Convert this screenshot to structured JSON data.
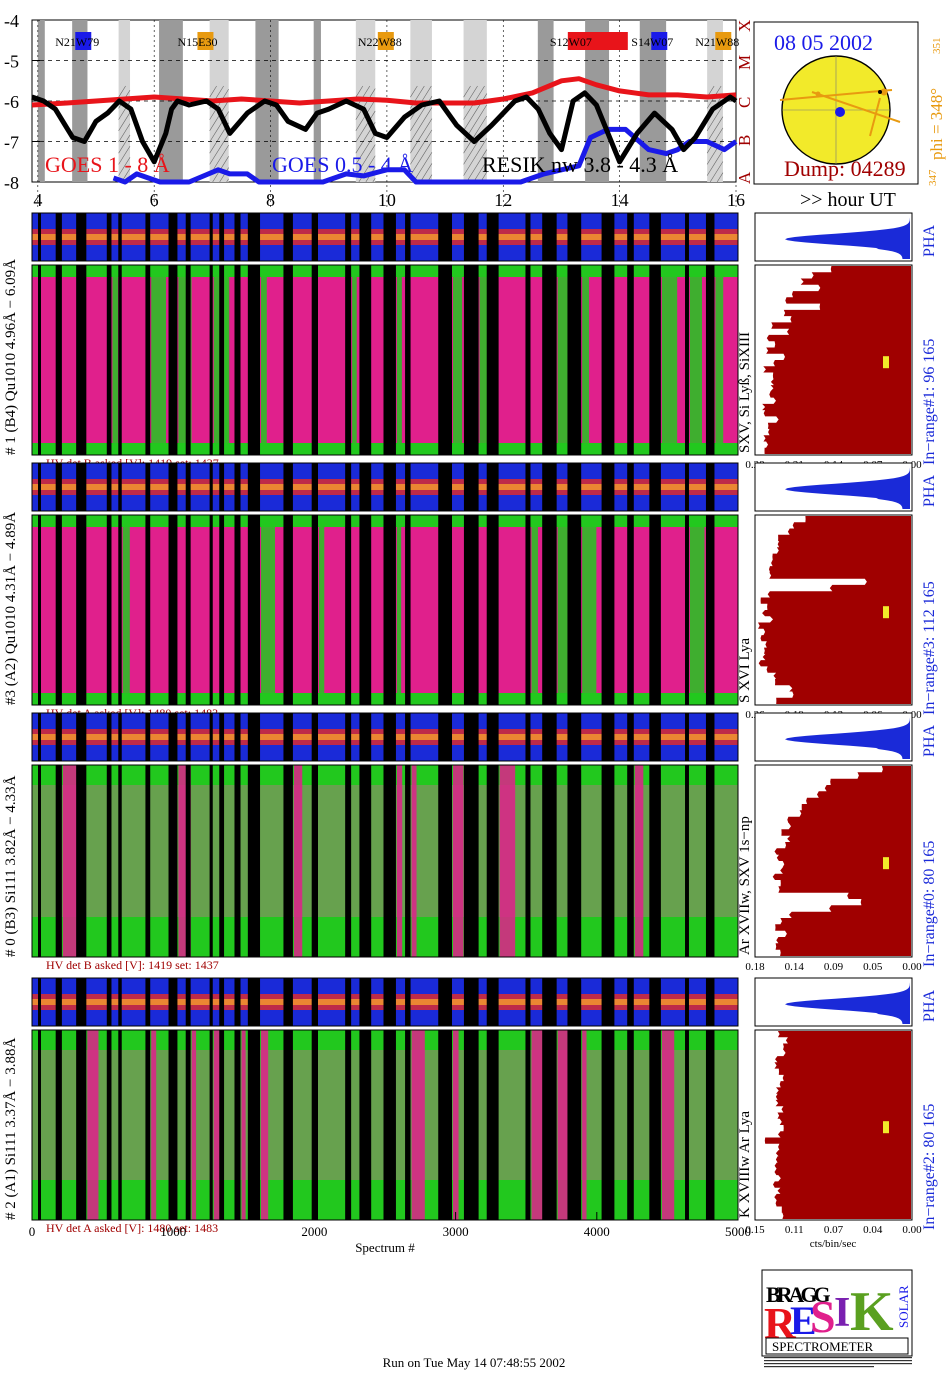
{
  "header": {
    "date": "08 05 2002",
    "dump": "Dump: 04289",
    "phi": "phi = 348°",
    "phi_sub": "351",
    "phi_bottom": "347",
    "hour_label": ">> hour UT",
    "goes_legend_1": "GOES 1 - 8 Å",
    "goes_legend_2": "GOES 0.5 - 4 Å",
    "resik_legend": "RESIK nw 3.8 - 4.3 Å"
  },
  "goes": {
    "ylim": [
      -8,
      -4
    ],
    "yticks": [
      "-4",
      "-5",
      "-6",
      "-7",
      "-8"
    ],
    "classes": [
      "X",
      "M",
      "C",
      "B",
      "A"
    ],
    "xticks": [
      "4",
      "6",
      "8",
      "10",
      "12",
      "14",
      "16"
    ],
    "xrange": [
      3.9,
      16
    ],
    "regions": [
      {
        "label": "N21W79",
        "x": 4.3
      },
      {
        "label": "N15E30",
        "x": 6.4
      },
      {
        "label": "N22W88",
        "x": 9.5
      },
      {
        "label": "S12W07",
        "x": 12.8
      },
      {
        "label": "S14W07",
        "x": 14.2
      },
      {
        "label": "N21W88",
        "x": 15.3
      }
    ],
    "red_curve": {
      "x": [
        3.9,
        4.5,
        5.0,
        5.5,
        6.0,
        6.5,
        7.0,
        7.5,
        8.0,
        8.5,
        9.0,
        9.5,
        10.0,
        10.5,
        11.0,
        11.5,
        12.0,
        12.5,
        13.0,
        13.3,
        13.6,
        14.0,
        14.5,
        15.0,
        15.5,
        16.0
      ],
      "y": [
        -6.1,
        -6.05,
        -6.0,
        -5.95,
        -5.9,
        -5.95,
        -6.0,
        -5.95,
        -6.0,
        -6.05,
        -6.0,
        -5.95,
        -5.98,
        -6.05,
        -6.05,
        -6.05,
        -5.95,
        -5.8,
        -5.5,
        -5.45,
        -5.6,
        -5.75,
        -5.85,
        -5.85,
        -5.9,
        -5.85
      ]
    },
    "blue_curve": {
      "x": [
        5.3,
        5.5,
        5.7,
        5.9,
        6.1,
        6.3,
        6.6,
        7.1,
        7.3,
        7.6,
        7.8,
        8.9,
        9.3,
        9.6,
        10.0,
        10.3,
        10.5,
        11.2,
        11.6,
        12.0,
        12.3,
        12.7,
        13.0,
        13.3,
        13.5,
        13.8,
        14.1,
        14.5,
        14.8,
        15.0,
        15.2,
        15.5,
        15.8,
        16.0
      ],
      "y": [
        -7.9,
        -8.0,
        -7.8,
        -7.9,
        -8.0,
        -8.0,
        -8.0,
        -7.7,
        -7.8,
        -7.8,
        -8.0,
        -8.0,
        -7.8,
        -7.85,
        -7.7,
        -7.7,
        -8.0,
        -8.0,
        -8.0,
        -8.0,
        -8.0,
        -7.8,
        -7.7,
        -7.6,
        -6.9,
        -6.7,
        -6.7,
        -7.2,
        -7.3,
        -7.2,
        -7.0,
        -7.0,
        -7.2,
        -7.0
      ]
    },
    "black_curve": {
      "x": [
        3.9,
        4.1,
        4.3,
        4.6,
        4.8,
        5.0,
        5.2,
        5.4,
        5.6,
        5.8,
        6.0,
        6.2,
        6.3,
        6.4,
        6.6,
        6.9,
        7.1,
        7.3,
        7.6,
        7.9,
        8.1,
        8.3,
        8.6,
        8.8,
        9.0,
        9.3,
        9.6,
        9.8,
        10.0,
        10.3,
        10.6,
        10.9,
        11.2,
        11.5,
        11.8,
        12.0,
        12.2,
        12.4,
        12.6,
        12.8,
        13.0,
        13.2,
        13.4,
        13.6,
        13.8,
        14.0,
        14.3,
        14.6,
        14.9,
        15.1,
        15.3,
        15.6,
        15.9,
        16.0
      ],
      "y": [
        -5.9,
        -6.0,
        -6.2,
        -6.9,
        -7.0,
        -6.5,
        -6.3,
        -6.0,
        -6.2,
        -7.0,
        -7.5,
        -6.8,
        -6.2,
        -6.0,
        -6.1,
        -6.0,
        -6.2,
        -6.8,
        -6.3,
        -6.0,
        -6.1,
        -6.5,
        -6.7,
        -6.3,
        -6.2,
        -6.0,
        -6.2,
        -6.8,
        -6.9,
        -6.4,
        -6.1,
        -6.0,
        -6.6,
        -7.0,
        -6.6,
        -6.3,
        -6.0,
        -5.9,
        -6.2,
        -6.8,
        -7.2,
        -6.0,
        -5.8,
        -6.1,
        -6.8,
        -7.5,
        -6.8,
        -6.3,
        -6.7,
        -7.2,
        -6.9,
        -6.2,
        -5.9,
        -6.0
      ]
    }
  },
  "spectrum_axis": {
    "xlabel": "Spectrum #",
    "ticks": [
      "0",
      "1000",
      "2000",
      "3000",
      "4000",
      "5000"
    ],
    "range": [
      0,
      5000
    ]
  },
  "panels": [
    {
      "detector_label": "# 1 (B4) Qu1010 4.96Å − 6.09Å",
      "lines_label": "SXV, Si Lyß, SiXIII",
      "inrange_label": "In−range#1:   96 165",
      "pha_label": "PHA",
      "hv_label": "HV det B asked [V]:  1419  set:  1437",
      "xticks": [
        "0.28",
        "0.21",
        "0.14",
        "0.07",
        "0.00"
      ],
      "hue": "pink",
      "profile": [
        0.55,
        0.62,
        0.7,
        0.58,
        0.75,
        0.8,
        0.62,
        0.85,
        0.78,
        0.9,
        0.82,
        0.95,
        0.88,
        0.93,
        0.86,
        0.9,
        0.95,
        0.92,
        0.87,
        0.91,
        0.94,
        0.89,
        0.96,
        0.93,
        0.9,
        0.94,
        0.91,
        0.95,
        0.92,
        0.97
      ]
    },
    {
      "detector_label": "#3 (A2) Qu1010  4.31Å − 4.89Å",
      "lines_label": "S XVI Lya",
      "inrange_label": "In−range#3:   112 165",
      "pha_label": "PHA",
      "hv_label": "HV det A asked [V]:  1480  set:  1483",
      "xticks": [
        "0.26",
        "0.19",
        "0.13",
        "0.06",
        "0.00"
      ],
      "hue": "pink",
      "profile": [
        0.72,
        0.75,
        0.8,
        0.84,
        0.86,
        0.9,
        0.88,
        0.92,
        0.94,
        0.95,
        0.3,
        0.5,
        0.92,
        0.96,
        0.94,
        0.97,
        0.95,
        0.98,
        0.96,
        0.97,
        0.95,
        0.97,
        0.96,
        0.98,
        0.94,
        0.9,
        0.86,
        0.82,
        0.78,
        0.9
      ]
    },
    {
      "detector_label": "# 0 (B3) Si111  3.82Å − 4.33Å",
      "lines_label": "Ar XVIIw,  SXV 1s−np",
      "inrange_label": "In−range#0:   80 165",
      "pha_label": "PHA",
      "hv_label": "HV det B asked [V]:  1419  set:  1437",
      "xticks": [
        "0.18",
        "0.14",
        "0.09",
        "0.05",
        "0.00"
      ],
      "hue": "green",
      "profile": [
        0.22,
        0.35,
        0.5,
        0.58,
        0.62,
        0.68,
        0.7,
        0.74,
        0.78,
        0.8,
        0.82,
        0.8,
        0.83,
        0.85,
        0.84,
        0.86,
        0.85,
        0.88,
        0.87,
        0.86,
        0.4,
        0.35,
        0.55,
        0.8,
        0.84,
        0.86,
        0.84,
        0.87,
        0.86,
        0.88
      ]
    },
    {
      "detector_label": "# 2 (A1) Si111  3.37Å − 3.88Å",
      "lines_label": "K XVIIIw  Ar Lya",
      "inrange_label": "In−range#2:   80 165",
      "pha_label": "PHA",
      "hv_label": "HV det A asked [V]:  1480  set:  1483",
      "xticks": [
        "0.15",
        "0.11",
        "0.07",
        "0.04",
        "0.00"
      ],
      "hue": "green",
      "profile": [
        0.9,
        0.82,
        0.84,
        0.86,
        0.85,
        0.87,
        0.86,
        0.84,
        0.85,
        0.86,
        0.88,
        0.86,
        0.85,
        0.9,
        0.87,
        0.86,
        0.85,
        0.96,
        0.84,
        0.86,
        0.85,
        0.86,
        0.87,
        0.85,
        0.86,
        0.84,
        0.88,
        0.86,
        0.85,
        0.87
      ]
    }
  ],
  "profile_axis_label": "cts/bin/sec",
  "logo": {
    "letters": [
      "R",
      "E",
      "S",
      "I",
      "K"
    ],
    "top_left": "BRAGG",
    "right_side": "SOLAR",
    "bottom": "SPECTROMETER"
  },
  "footer": "Run on Tue May 14 07:48:55 2002",
  "colors": {
    "goes_red": "#e8141a",
    "goes_blue": "#1a1ae8",
    "dark_red": "#a00000",
    "orange": "#e89a10",
    "pha_blue": "#1a2ad8",
    "magenta": "#e0208c",
    "green": "#22c81e"
  }
}
